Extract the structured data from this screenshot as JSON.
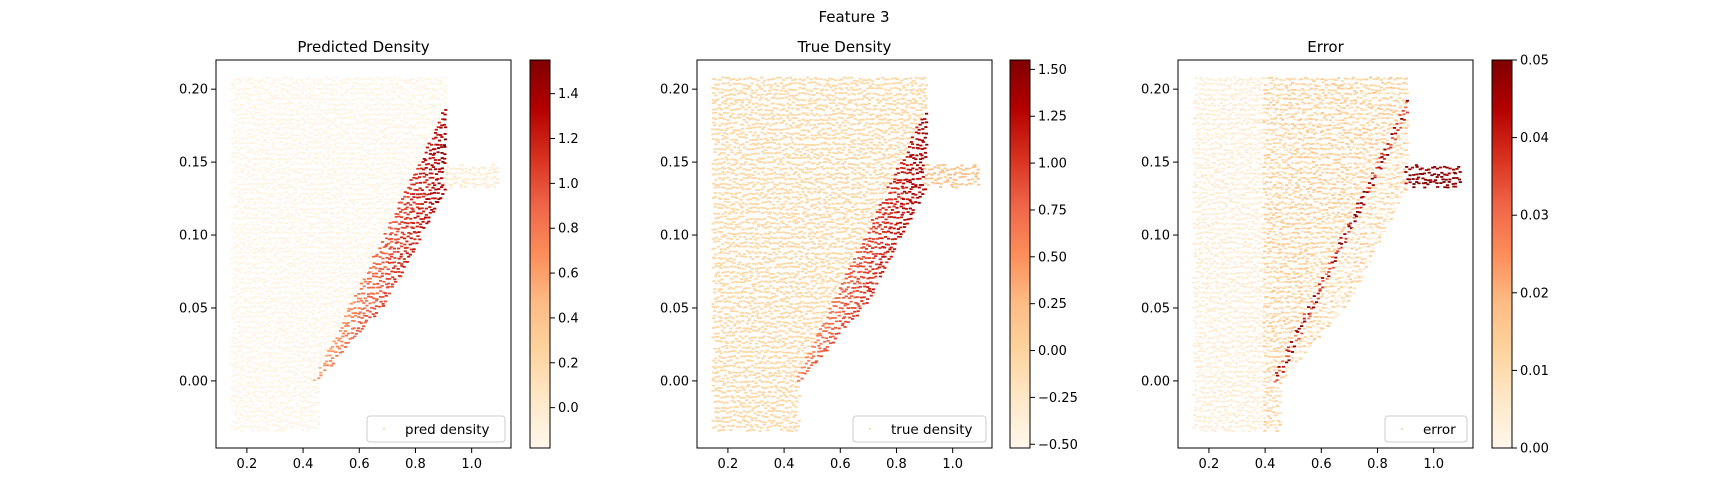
{
  "suptitle": "Feature 3",
  "chart_data": [
    {
      "type": "scatter",
      "title": "Predicted Density",
      "legend": {
        "label": "pred density",
        "placement": "lower right"
      },
      "xlim": [
        0.09,
        1.14
      ],
      "ylim": [
        -0.046,
        0.22
      ],
      "xticks": [
        "0.2",
        "0.4",
        "0.6",
        "0.8",
        "1.0"
      ],
      "yticks": [
        "0.00",
        "0.05",
        "0.10",
        "0.15",
        "0.20"
      ],
      "colorbar": {
        "min": -0.18,
        "max": 1.55,
        "ticks": [
          "0.0",
          "0.2",
          "0.4",
          "0.6",
          "0.8",
          "1.0",
          "1.2",
          "1.4"
        ]
      },
      "colormap": [
        "#fff7ec",
        "#fee8c8",
        "#fdd49e",
        "#fdbb84",
        "#fc8d59",
        "#ef6548",
        "#d7301f",
        "#b30000",
        "#7f0000"
      ],
      "field": {
        "upstream": -0.13,
        "ramp_low": 0.45,
        "ramp_high": 1.52,
        "outlet": -0.05,
        "ramp_range": [
          0,
          1.55
        ]
      }
    },
    {
      "type": "scatter",
      "title": "True Density",
      "legend": {
        "label": "true density",
        "placement": "lower right"
      },
      "xlim": [
        0.09,
        1.14
      ],
      "ylim": [
        -0.046,
        0.22
      ],
      "xticks": [
        "0.2",
        "0.4",
        "0.6",
        "0.8",
        "1.0"
      ],
      "yticks": [
        "0.00",
        "0.05",
        "0.10",
        "0.15",
        "0.20"
      ],
      "colorbar": {
        "min": -0.52,
        "max": 1.55,
        "ticks": [
          "−0.50",
          "−0.25",
          "0.00",
          "0.25",
          "0.50",
          "0.75",
          "1.00",
          "1.25",
          "1.50"
        ]
      },
      "colormap": [
        "#fff7ec",
        "#fee8c8",
        "#fdd49e",
        "#fdbb84",
        "#fc8d59",
        "#ef6548",
        "#d7301f",
        "#b30000",
        "#7f0000"
      ],
      "field": {
        "upstream": -0.05,
        "ramp_low": 0.4,
        "ramp_high": 1.52,
        "outlet": 0.1,
        "ramp_range": [
          0,
          1.55
        ]
      }
    },
    {
      "type": "scatter",
      "title": "Error",
      "legend": {
        "label": "error",
        "placement": "lower right"
      },
      "xlim": [
        0.09,
        1.14
      ],
      "ylim": [
        -0.046,
        0.22
      ],
      "xticks": [
        "0.2",
        "0.4",
        "0.6",
        "0.8",
        "1.0"
      ],
      "yticks": [
        "0.00",
        "0.05",
        "0.10",
        "0.15",
        "0.20"
      ],
      "colorbar": {
        "min": 0.0,
        "max": 0.05,
        "ticks": [
          "0.00",
          "0.01",
          "0.02",
          "0.03",
          "0.04",
          "0.05"
        ]
      },
      "colormap": [
        "#fff7ec",
        "#fee8c8",
        "#fdd49e",
        "#fdbb84",
        "#fc8d59",
        "#ef6548",
        "#d7301f",
        "#b30000",
        "#7f0000"
      ],
      "field": {
        "upstream_left": 0.004,
        "upstream_right": 0.012,
        "shock": 0.05,
        "ramp_low": 0.002,
        "outlet": 0.05
      }
    }
  ]
}
